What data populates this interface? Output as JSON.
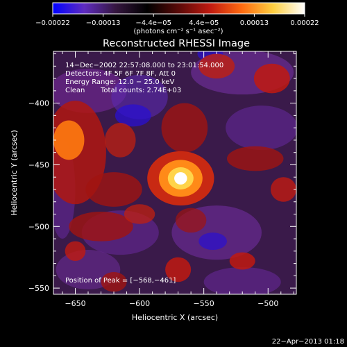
{
  "chart_data": {
    "type": "heatmap",
    "title": "Reconstructed RHESSI Image",
    "xlabel": "Heliocentric X (arcsec)",
    "ylabel": "Heliocentric Y (arcsec)",
    "xlim": [
      -667,
      -478
    ],
    "ylim": [
      -555,
      -358
    ],
    "x_ticks": [
      -650,
      -600,
      -550,
      -500
    ],
    "x_tick_labels": [
      "−650",
      "−600",
      "−550",
      "−500"
    ],
    "y_ticks": [
      -400,
      -450,
      -500,
      -550
    ],
    "y_tick_labels": [
      "−400",
      "−450",
      "−500",
      "−550"
    ],
    "colorbar": {
      "range": [
        -0.00022,
        0.00022
      ],
      "tick_labels": [
        "−0.00022",
        "−0.00013",
        "−4.4e−05",
        "4.4e−05",
        "0.00013",
        "0.00022"
      ],
      "unit_label": "(photons cm⁻² s⁻¹ asec⁻²)",
      "colors": [
        "#0000ff",
        "#5f2cc0",
        "#35163f",
        "#000000",
        "#5a0a08",
        "#c01a10",
        "#ff6a10",
        "#ffcf40",
        "#ffffff"
      ]
    },
    "annotations": {
      "time_range": "14−Dec−2002 22:57:08.000 to 23:01:54.000",
      "detectors": "Detectors: 4F 5F 6F 7F 8F, Att 0",
      "energy_range": "Energy Range: 12.0 − 25.0 keV",
      "algorithm": "Clean",
      "total_counts": "Total counts: 2.74E+03",
      "peak_position": "Position of Peak = [−568,−461]"
    },
    "peak": {
      "x": -568,
      "y": -461
    }
  },
  "footer": {
    "timestamp": "22−Apr−2013 01:18"
  }
}
